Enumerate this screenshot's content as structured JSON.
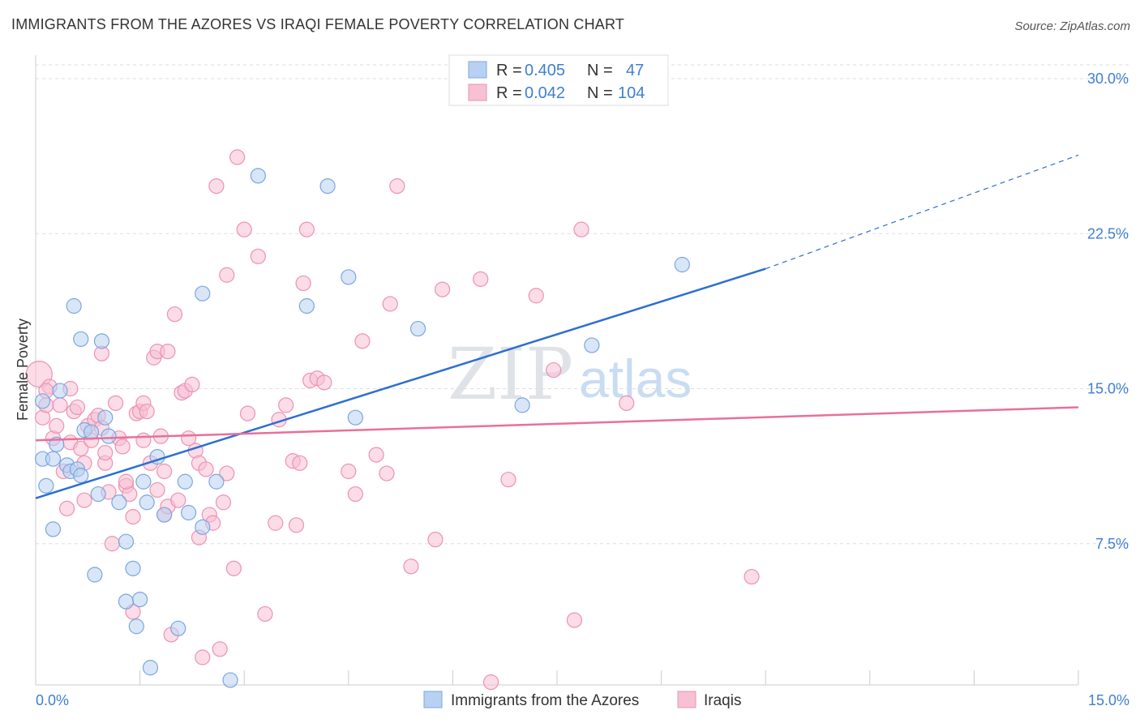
{
  "title": "IMMIGRANTS FROM THE AZORES VS IRAQI FEMALE POVERTY CORRELATION CHART",
  "source": "Source: ZipAtlas.com",
  "watermark": {
    "zip": "ZIP",
    "atlas": "atlas"
  },
  "colors": {
    "blue_fill": "#b8d1f3",
    "blue_stroke": "#7aa6e0",
    "blue_line": "#2d6fd0",
    "pink_fill": "#f7c0d3",
    "pink_stroke": "#ec92b2",
    "pink_line": "#e8709a",
    "grid": "#dddddd",
    "tick_text": "#3f7fd0"
  },
  "legend": {
    "rows": [
      {
        "r_label": "R =",
        "r_value": "0.405",
        "n_label": "N =",
        "n_value": "47"
      },
      {
        "r_label": "R =",
        "r_value": "0.042",
        "n_label": "N =",
        "n_value": "104"
      }
    ]
  },
  "chart_data": {
    "type": "scatter",
    "xlabel": "",
    "ylabel": "Female Poverty",
    "xlim": [
      0,
      15
    ],
    "ylim": [
      0,
      30
    ],
    "x_tick_labels": [
      "0.0%",
      "15.0%"
    ],
    "y_ticks": [
      7.5,
      15,
      22.5,
      30
    ],
    "y_tick_labels": [
      "7.5%",
      "15.0%",
      "22.5%",
      "30.0%"
    ],
    "grid": true,
    "legend_position": "bottom",
    "series": [
      {
        "name": "Immigrants from the Azores",
        "color": "blue",
        "trend": {
          "x0": 0,
          "y0": 9.7,
          "x1": 10.5,
          "y1": 20.8,
          "dash_to_x": 15,
          "dash_to_y": 26.3
        },
        "points": [
          [
            0.1,
            14.4
          ],
          [
            0.1,
            11.6
          ],
          [
            0.15,
            10.3
          ],
          [
            0.25,
            11.6
          ],
          [
            0.25,
            8.2
          ],
          [
            0.3,
            12.3
          ],
          [
            0.35,
            14.9
          ],
          [
            0.45,
            11.3
          ],
          [
            0.5,
            11.0
          ],
          [
            0.55,
            19.0
          ],
          [
            0.6,
            11.1
          ],
          [
            0.65,
            10.8
          ],
          [
            0.65,
            17.4
          ],
          [
            0.7,
            13.0
          ],
          [
            0.8,
            12.9
          ],
          [
            0.85,
            6.0
          ],
          [
            0.9,
            9.9
          ],
          [
            0.95,
            17.3
          ],
          [
            1.0,
            13.6
          ],
          [
            1.05,
            12.7
          ],
          [
            1.2,
            9.5
          ],
          [
            1.3,
            4.7
          ],
          [
            1.3,
            7.6
          ],
          [
            1.4,
            6.3
          ],
          [
            1.45,
            3.5
          ],
          [
            1.5,
            4.8
          ],
          [
            1.55,
            10.5
          ],
          [
            1.6,
            9.5
          ],
          [
            1.65,
            1.5
          ],
          [
            1.75,
            11.7
          ],
          [
            1.85,
            8.9
          ],
          [
            2.05,
            3.4
          ],
          [
            2.15,
            10.5
          ],
          [
            2.2,
            9.0
          ],
          [
            2.4,
            8.3
          ],
          [
            2.4,
            19.6
          ],
          [
            2.6,
            10.5
          ],
          [
            2.8,
            0.9
          ],
          [
            3.2,
            25.3
          ],
          [
            3.9,
            19.0
          ],
          [
            4.2,
            24.8
          ],
          [
            4.5,
            20.4
          ],
          [
            4.6,
            13.6
          ],
          [
            5.5,
            17.9
          ],
          [
            7.0,
            14.2
          ],
          [
            8.0,
            17.1
          ],
          [
            9.3,
            21.0
          ]
        ]
      },
      {
        "name": "Iraqis",
        "color": "pink",
        "trend": {
          "x0": 0,
          "y0": 12.5,
          "x1": 15,
          "y1": 14.1
        },
        "points": [
          [
            0.05,
            15.7
          ],
          [
            0.1,
            13.6
          ],
          [
            0.15,
            14.2
          ],
          [
            0.2,
            15.1
          ],
          [
            0.25,
            12.6
          ],
          [
            0.3,
            13.2
          ],
          [
            0.35,
            14.2
          ],
          [
            0.4,
            11.0
          ],
          [
            0.45,
            9.2
          ],
          [
            0.5,
            12.4
          ],
          [
            0.55,
            13.9
          ],
          [
            0.6,
            14.1
          ],
          [
            0.65,
            12.1
          ],
          [
            0.7,
            9.6
          ],
          [
            0.7,
            11.4
          ],
          [
            0.75,
            13.2
          ],
          [
            0.8,
            12.5
          ],
          [
            0.85,
            13.5
          ],
          [
            0.9,
            13.7
          ],
          [
            0.95,
            13.1
          ],
          [
            0.95,
            16.7
          ],
          [
            1.0,
            11.4
          ],
          [
            1.0,
            11.9
          ],
          [
            1.05,
            10.0
          ],
          [
            1.1,
            7.5
          ],
          [
            1.15,
            14.3
          ],
          [
            1.2,
            12.6
          ],
          [
            1.25,
            12.2
          ],
          [
            1.3,
            10.3
          ],
          [
            1.35,
            9.9
          ],
          [
            1.4,
            8.8
          ],
          [
            1.4,
            4.2
          ],
          [
            1.45,
            13.8
          ],
          [
            1.5,
            13.9
          ],
          [
            1.55,
            12.5
          ],
          [
            1.55,
            14.3
          ],
          [
            1.6,
            13.9
          ],
          [
            1.65,
            11.4
          ],
          [
            1.7,
            16.5
          ],
          [
            1.75,
            16.8
          ],
          [
            1.75,
            10.1
          ],
          [
            1.8,
            12.7
          ],
          [
            1.85,
            11.0
          ],
          [
            1.85,
            8.9
          ],
          [
            1.9,
            16.8
          ],
          [
            1.9,
            9.3
          ],
          [
            1.95,
            3.1
          ],
          [
            2.0,
            18.6
          ],
          [
            2.05,
            9.6
          ],
          [
            2.1,
            14.8
          ],
          [
            2.15,
            14.9
          ],
          [
            2.25,
            15.2
          ],
          [
            2.3,
            12.0
          ],
          [
            2.35,
            7.8
          ],
          [
            2.35,
            11.4
          ],
          [
            2.4,
            2.0
          ],
          [
            2.45,
            11.1
          ],
          [
            2.5,
            8.9
          ],
          [
            2.55,
            8.5
          ],
          [
            2.6,
            24.8
          ],
          [
            2.65,
            2.4
          ],
          [
            2.7,
            9.5
          ],
          [
            2.75,
            20.5
          ],
          [
            2.75,
            10.9
          ],
          [
            2.85,
            6.3
          ],
          [
            2.9,
            26.2
          ],
          [
            3.0,
            22.7
          ],
          [
            3.05,
            13.8
          ],
          [
            3.2,
            21.4
          ],
          [
            3.3,
            4.1
          ],
          [
            3.45,
            8.5
          ],
          [
            3.6,
            14.2
          ],
          [
            3.7,
            11.5
          ],
          [
            3.75,
            8.4
          ],
          [
            3.8,
            11.4
          ],
          [
            3.85,
            20.1
          ],
          [
            3.9,
            22.7
          ],
          [
            3.95,
            15.4
          ],
          [
            4.05,
            15.5
          ],
          [
            4.15,
            15.3
          ],
          [
            4.5,
            11.0
          ],
          [
            4.6,
            9.9
          ],
          [
            4.7,
            17.3
          ],
          [
            4.9,
            11.8
          ],
          [
            5.05,
            10.9
          ],
          [
            5.1,
            19.1
          ],
          [
            5.2,
            24.8
          ],
          [
            5.4,
            6.4
          ],
          [
            5.75,
            7.7
          ],
          [
            5.85,
            19.8
          ],
          [
            6.4,
            20.3
          ],
          [
            6.55,
            0.8
          ],
          [
            6.8,
            10.6
          ],
          [
            7.2,
            19.5
          ],
          [
            7.45,
            15.9
          ],
          [
            7.75,
            3.8
          ],
          [
            7.85,
            22.7
          ],
          [
            8.5,
            14.3
          ],
          [
            10.3,
            5.9
          ],
          [
            0.15,
            14.9
          ],
          [
            0.5,
            15.0
          ],
          [
            1.3,
            10.5
          ],
          [
            2.2,
            12.6
          ],
          [
            3.5,
            13.5
          ]
        ]
      }
    ]
  }
}
